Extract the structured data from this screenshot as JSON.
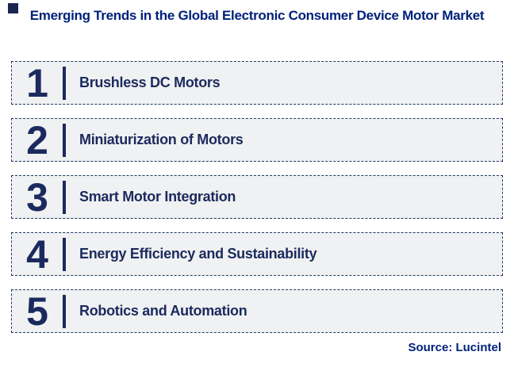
{
  "title": {
    "text": "Emerging Trends in the Global Electronic Consumer Device Motor Market"
  },
  "trends": [
    {
      "number": "1",
      "label": "Brushless DC Motors"
    },
    {
      "number": "2",
      "label": "Miniaturization of Motors"
    },
    {
      "number": "3",
      "label": "Smart Motor Integration"
    },
    {
      "number": "4",
      "label": "Energy Efficiency and Sustainability"
    },
    {
      "number": "5",
      "label": "Robotics and Automation"
    }
  ],
  "source": {
    "text": "Source: Lucintel"
  },
  "colors": {
    "title_text": "#00217b",
    "trend_text": "#1b2a5e",
    "row_fill": "#f0f1f2",
    "row_border": "#1f3864",
    "corner_mark": "#1a2550",
    "page_background": "#ffffff"
  }
}
